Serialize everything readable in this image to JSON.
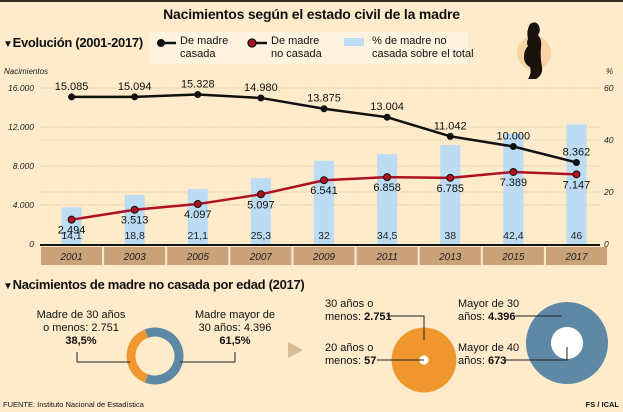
{
  "title": "Nacimientos según el estado civil de la madre",
  "section1": {
    "marker": "▼",
    "title": "Evolución (2001-2017)"
  },
  "section2": {
    "marker": "▼",
    "title": "Nacimientos de madre no casada por edad (2017)"
  },
  "legend": {
    "casada": "De madre casada",
    "casada_l1": "De madre",
    "casada_l2": "casada",
    "no_casada_l1": "De madre",
    "no_casada_l2": "no casada",
    "pct_l1": "% de madre no",
    "pct_l2": "casada sobre el total"
  },
  "colors": {
    "background": "#fdebcb",
    "casada": "#111111",
    "no_casada": "#b01020",
    "bars": "#bcdcf3",
    "axis_band": "#c9a27a",
    "under30": "#f0962e",
    "over30": "#5f88a6"
  },
  "chart_data": [
    {
      "type": "line",
      "title": "Evolución (2001-2017)",
      "ylabel": "Nacimientos",
      "y2label": "%",
      "ylim": [
        0,
        16000
      ],
      "y2lim": [
        0,
        60
      ],
      "yticks": [
        "0",
        "4.000",
        "8.000",
        "12.000",
        "16.000"
      ],
      "y2ticks": [
        "0",
        "20",
        "40",
        "60"
      ],
      "categories": [
        "2001",
        "2003",
        "2005",
        "2007",
        "2009",
        "2011",
        "2013",
        "2015",
        "2017"
      ],
      "series": [
        {
          "name": "De madre casada",
          "kind": "line",
          "axis": "left",
          "values": [
            15085,
            15094,
            15328,
            14980,
            13875,
            13004,
            11042,
            10000,
            8362
          ],
          "labels": [
            "15.085",
            "15.094",
            "15.328",
            "14.980",
            "13.875",
            "13.004",
            "11.042",
            "10.000",
            "8.362"
          ]
        },
        {
          "name": "De madre no casada",
          "kind": "line",
          "axis": "left",
          "values": [
            2494,
            3513,
            4097,
            5097,
            6541,
            6858,
            6785,
            7389,
            7147
          ],
          "labels": [
            "2.494",
            "3.513",
            "4.097",
            "5.097",
            "6.541",
            "6.858",
            "6.785",
            "7.389",
            "7.147"
          ]
        },
        {
          "name": "% de madre no casada sobre el total",
          "kind": "bar",
          "axis": "right",
          "values": [
            14.1,
            18.8,
            21.1,
            25.3,
            32,
            34.5,
            38,
            42.4,
            46
          ],
          "labels": [
            "14,1",
            "18,8",
            "21,1",
            "25,3",
            "32",
            "34,5",
            "38",
            "42,4",
            "46"
          ]
        }
      ],
      "grid": true,
      "legend_position": "top"
    },
    {
      "type": "pie",
      "title": "Nacimientos de madre no casada por edad (2017)",
      "slices": [
        {
          "name": "Madre de 30 años o menos",
          "value": 2751,
          "percent": 38.5
        },
        {
          "name": "Madre mayor de 30 años",
          "value": 4396,
          "percent": 61.5
        }
      ],
      "labels": {
        "left_l1": "Madre de 30 años",
        "left_l2": "o menos: 2.751",
        "left_pct": "38,5%",
        "right_l1": "Madre mayor de",
        "right_l2": "30 años: 4.396",
        "right_pct": "61,5%"
      }
    },
    {
      "type": "bubble",
      "groups": [
        {
          "outer": {
            "name": "30 años o menos",
            "value": 2751
          },
          "inner": {
            "name": "20 años o menos",
            "value": 57
          }
        },
        {
          "outer": {
            "name": "Mayor de 30 años",
            "value": 4396
          },
          "inner": {
            "name": "Mayor de 40 años",
            "value": 673
          }
        }
      ],
      "labels": {
        "u30_l1": "30 años o",
        "u30_l2a": "menos: ",
        "u30_l2b": "2.751",
        "u20_l1": "20 años o",
        "u20_l2a": "menos: ",
        "u20_l2b": "57",
        "o30_l1": "Mayor de 30",
        "o30_l2a": "años: ",
        "o30_l2b": "4.396",
        "o40_l1": "Mayor de 40",
        "o40_l2a": "años: ",
        "o40_l2b": "673"
      }
    }
  ],
  "footer": {
    "source": "FUENTE: Instituto Nacional de Estadística",
    "credit": "FS / ICAL"
  }
}
